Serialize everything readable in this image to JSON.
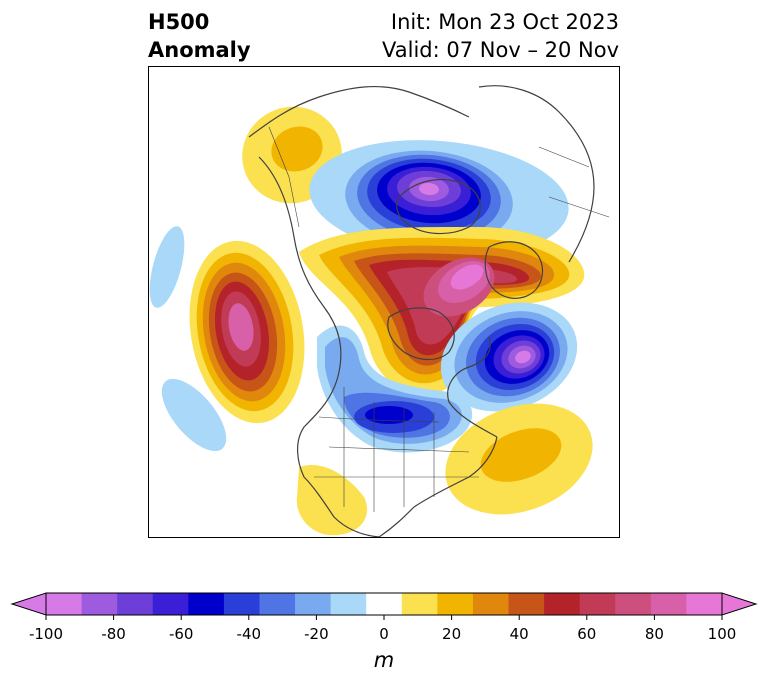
{
  "title": {
    "left_line1": "H500",
    "left_line2": "Anomaly",
    "right_line1": "Init: Mon 23 Oct 2023",
    "right_line2": "Valid: 07 Nov – 20 Nov"
  },
  "colorbar": {
    "unit": "m",
    "ticks": [
      "-100",
      "-80",
      "-60",
      "-40",
      "-20",
      "0",
      "20",
      "40",
      "60",
      "80",
      "100"
    ],
    "levels": [
      -100,
      -90,
      -80,
      -70,
      -60,
      -50,
      -40,
      -30,
      -20,
      -10,
      10,
      20,
      30,
      40,
      50,
      60,
      70,
      80,
      90,
      100
    ],
    "colors": [
      "#d67ae8",
      "#9e5be0",
      "#6d3fd8",
      "#3b1fd6",
      "#0000cc",
      "#2a3fd8",
      "#4f74e4",
      "#79aaf0",
      "#a9d8f8",
      "#ffffff",
      "#fbe04f",
      "#f1b400",
      "#e0870e",
      "#c75518",
      "#b5232a",
      "#c23b56",
      "#cd4f7e",
      "#d860a8",
      "#e777d6"
    ],
    "extend_min_color": "#d67ae8",
    "extend_max_color": "#e777d6"
  },
  "map": {
    "projection": "polar-stereographic-north-america",
    "coastline_color": "#404040"
  }
}
